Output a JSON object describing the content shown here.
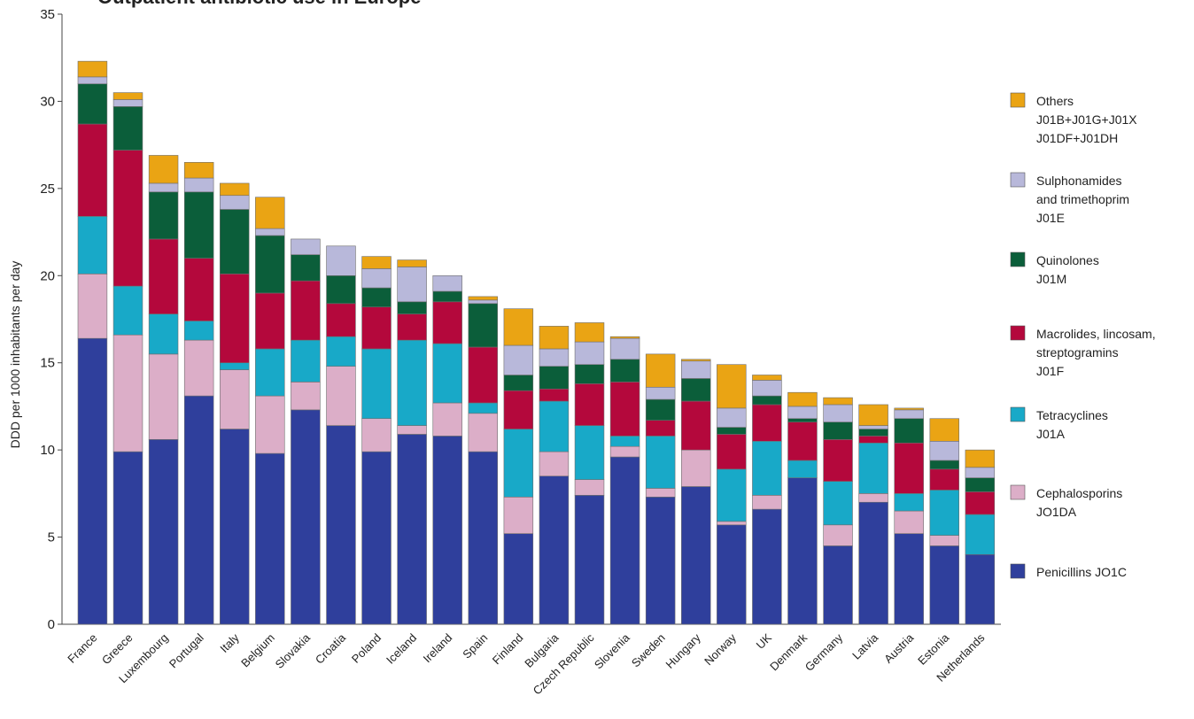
{
  "chart_data": {
    "type": "bar",
    "stacked": true,
    "title": "Outpatient antibiotic use in Europe",
    "xlabel": "",
    "ylabel": "DDD per 1000 inhabitants per day",
    "ylim": [
      0,
      35
    ],
    "yticks": [
      0,
      5,
      10,
      15,
      20,
      25,
      30,
      35
    ],
    "grid": false,
    "legend_position": "right",
    "categories": [
      "France",
      "Greece",
      "Luxembourg",
      "Portugal",
      "Italy",
      "Belgium",
      "Slovakia",
      "Croatia",
      "Poland",
      "Iceland",
      "Ireland",
      "Spain",
      "Finland",
      "Bulgaria",
      "Czech Republic",
      "Slovenia",
      "Sweden",
      "Hungary",
      "Norway",
      "UK",
      "Denmark",
      "Germany",
      "Latvia",
      "Austria",
      "Estonia",
      "Netherlands"
    ],
    "series": [
      {
        "name": "Penicillins JO1C",
        "color": "#2f3f9c",
        "values": [
          16.4,
          9.9,
          10.6,
          13.1,
          11.2,
          9.8,
          12.3,
          11.4,
          9.9,
          10.9,
          10.8,
          9.9,
          5.2,
          8.5,
          7.4,
          9.6,
          7.3,
          7.9,
          5.7,
          6.6,
          8.4,
          4.5,
          7.0,
          5.2,
          4.5,
          4.0
        ]
      },
      {
        "name": "Cephalosporins JO1DA",
        "color": "#dcaec8",
        "values": [
          3.7,
          6.7,
          4.9,
          3.2,
          3.4,
          3.3,
          1.6,
          3.4,
          1.9,
          0.5,
          1.9,
          2.2,
          2.1,
          1.4,
          0.9,
          0.6,
          0.5,
          2.1,
          0.2,
          0.8,
          0.0,
          1.2,
          0.5,
          1.3,
          0.6,
          0.0
        ]
      },
      {
        "name": "Tetracyclines J01A",
        "color": "#18a9c8",
        "values": [
          3.3,
          2.8,
          2.3,
          1.1,
          0.4,
          2.7,
          2.4,
          1.7,
          4.0,
          4.9,
          3.4,
          0.6,
          3.9,
          2.9,
          3.1,
          0.6,
          3.0,
          0.0,
          3.0,
          3.1,
          1.0,
          2.5,
          2.9,
          1.0,
          2.6,
          2.3
        ]
      },
      {
        "name": "Macrolides, lincosam, streptogramins J01F",
        "color": "#b4083c",
        "values": [
          5.3,
          7.8,
          4.3,
          3.6,
          5.1,
          3.2,
          3.4,
          1.9,
          2.4,
          1.5,
          2.4,
          3.2,
          2.2,
          0.7,
          2.4,
          3.1,
          0.9,
          2.8,
          2.0,
          2.1,
          2.2,
          2.4,
          0.4,
          2.9,
          1.2,
          1.3
        ]
      },
      {
        "name": "Quinolones J01M",
        "color": "#0b5e3a",
        "values": [
          2.3,
          2.5,
          2.7,
          3.8,
          3.7,
          3.3,
          1.5,
          1.6,
          1.1,
          0.7,
          0.6,
          2.5,
          0.9,
          1.3,
          1.1,
          1.3,
          1.2,
          1.3,
          0.4,
          0.5,
          0.2,
          1.0,
          0.4,
          1.4,
          0.5,
          0.8
        ]
      },
      {
        "name": "Sulphonamides and trimethoprim J01E",
        "color": "#b8b8da",
        "values": [
          0.4,
          0.4,
          0.5,
          0.8,
          0.8,
          0.4,
          0.9,
          1.7,
          1.1,
          2.0,
          0.9,
          0.2,
          1.7,
          1.0,
          1.3,
          1.2,
          0.7,
          1.0,
          1.1,
          0.9,
          0.7,
          1.0,
          0.2,
          0.5,
          1.1,
          0.6
        ]
      },
      {
        "name": "Others J01B+J01G+J01X J01DF+J01DH",
        "color": "#eaa414",
        "values": [
          0.9,
          0.4,
          1.6,
          0.9,
          0.7,
          1.8,
          0.0,
          0.0,
          0.7,
          0.4,
          0.0,
          0.2,
          2.1,
          1.3,
          1.1,
          0.1,
          1.9,
          0.1,
          2.5,
          0.3,
          0.8,
          0.4,
          1.2,
          0.1,
          1.3,
          1.0
        ]
      }
    ],
    "legend": [
      {
        "lines": [
          "Others",
          "J01B+J01G+J01X",
          "J01DF+J01DH"
        ],
        "color": "#eaa414"
      },
      {
        "lines": [
          "Sulphonamides",
          "and trimethoprim",
          "J01E"
        ],
        "color": "#b8b8da"
      },
      {
        "lines": [
          "Quinolones",
          "J01M"
        ],
        "color": "#0b5e3a"
      },
      {
        "lines": [
          "Macrolides, lincosam,",
          "streptogramins",
          "J01F"
        ],
        "color": "#b4083c"
      },
      {
        "lines": [
          "Tetracyclines",
          "J01A"
        ],
        "color": "#18a9c8"
      },
      {
        "lines": [
          "Cephalosporins",
          "JO1DA"
        ],
        "color": "#dcaec8"
      },
      {
        "lines": [
          "Penicillins JO1C"
        ],
        "color": "#2f3f9c"
      }
    ]
  }
}
